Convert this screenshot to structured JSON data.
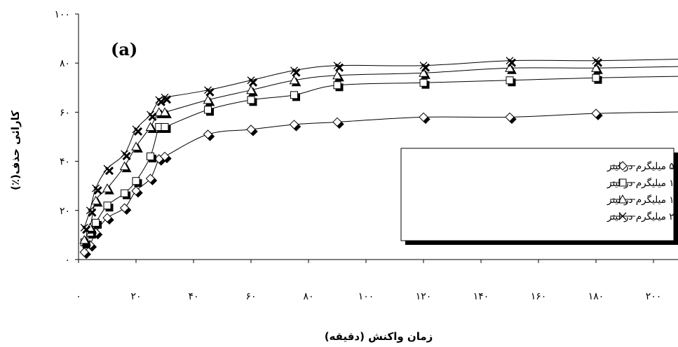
{
  "chart_data": {
    "type": "line",
    "title": "",
    "panel_label": "(a)",
    "xlabel": "زمان واکنش (دقیقه)",
    "ylabel": "کارائی حذف(٪)",
    "xlim": [
      0,
      210
    ],
    "ylim": [
      0,
      100
    ],
    "x_ticks": [
      0,
      20,
      40,
      60,
      80,
      100,
      120,
      140,
      160,
      180,
      200
    ],
    "x_tick_labels": [
      "۰",
      "۲۰",
      "۴۰",
      "۶۰",
      "۸۰",
      "۱۰۰",
      "۱۲۰",
      "۱۴۰",
      "۱۶۰",
      "۱۸۰",
      "۲۰۰"
    ],
    "y_ticks": [
      0,
      20,
      40,
      60,
      80,
      100
    ],
    "y_tick_labels": [
      "۰",
      "۲۰",
      "۴۰",
      "۶۰",
      "۸۰",
      "۱۰۰"
    ],
    "grid": false,
    "legend_position": "right-middle",
    "x": [
      2,
      4,
      6,
      10,
      16,
      20,
      25,
      28,
      30,
      45,
      60,
      75,
      90,
      120,
      150,
      180
    ],
    "series": [
      {
        "name": "فلوراید ۵ میلیگرم در لیتر",
        "marker": "diamond",
        "color": "#000000",
        "values": [
          3,
          6,
          11,
          17,
          21,
          28,
          33,
          41,
          42,
          51,
          53,
          55,
          56,
          58,
          58,
          59.5
        ]
      },
      {
        "name": "فلوراید ۱۰ میلیگرم در لیتر",
        "marker": "square",
        "color": "#000000",
        "values": [
          7,
          11,
          15,
          22,
          27,
          32,
          42,
          54,
          54,
          61,
          65,
          67,
          71,
          72,
          73,
          74
        ]
      },
      {
        "name": "فلوراید ۱۵ میلیگرم در لیتر",
        "marker": "triangle",
        "color": "#000000",
        "values": [
          8,
          13,
          24,
          29,
          38,
          46,
          54,
          60,
          60,
          65,
          69,
          73,
          75,
          76,
          78,
          78
        ]
      },
      {
        "name": "فلوراید ۲۰ میلیگرم در لیتر",
        "marker": "cross",
        "color": "#000000",
        "values": [
          13,
          20,
          29,
          37,
          43,
          53,
          59,
          65,
          66,
          69,
          73,
          77,
          79,
          79,
          81,
          81
        ]
      }
    ]
  }
}
